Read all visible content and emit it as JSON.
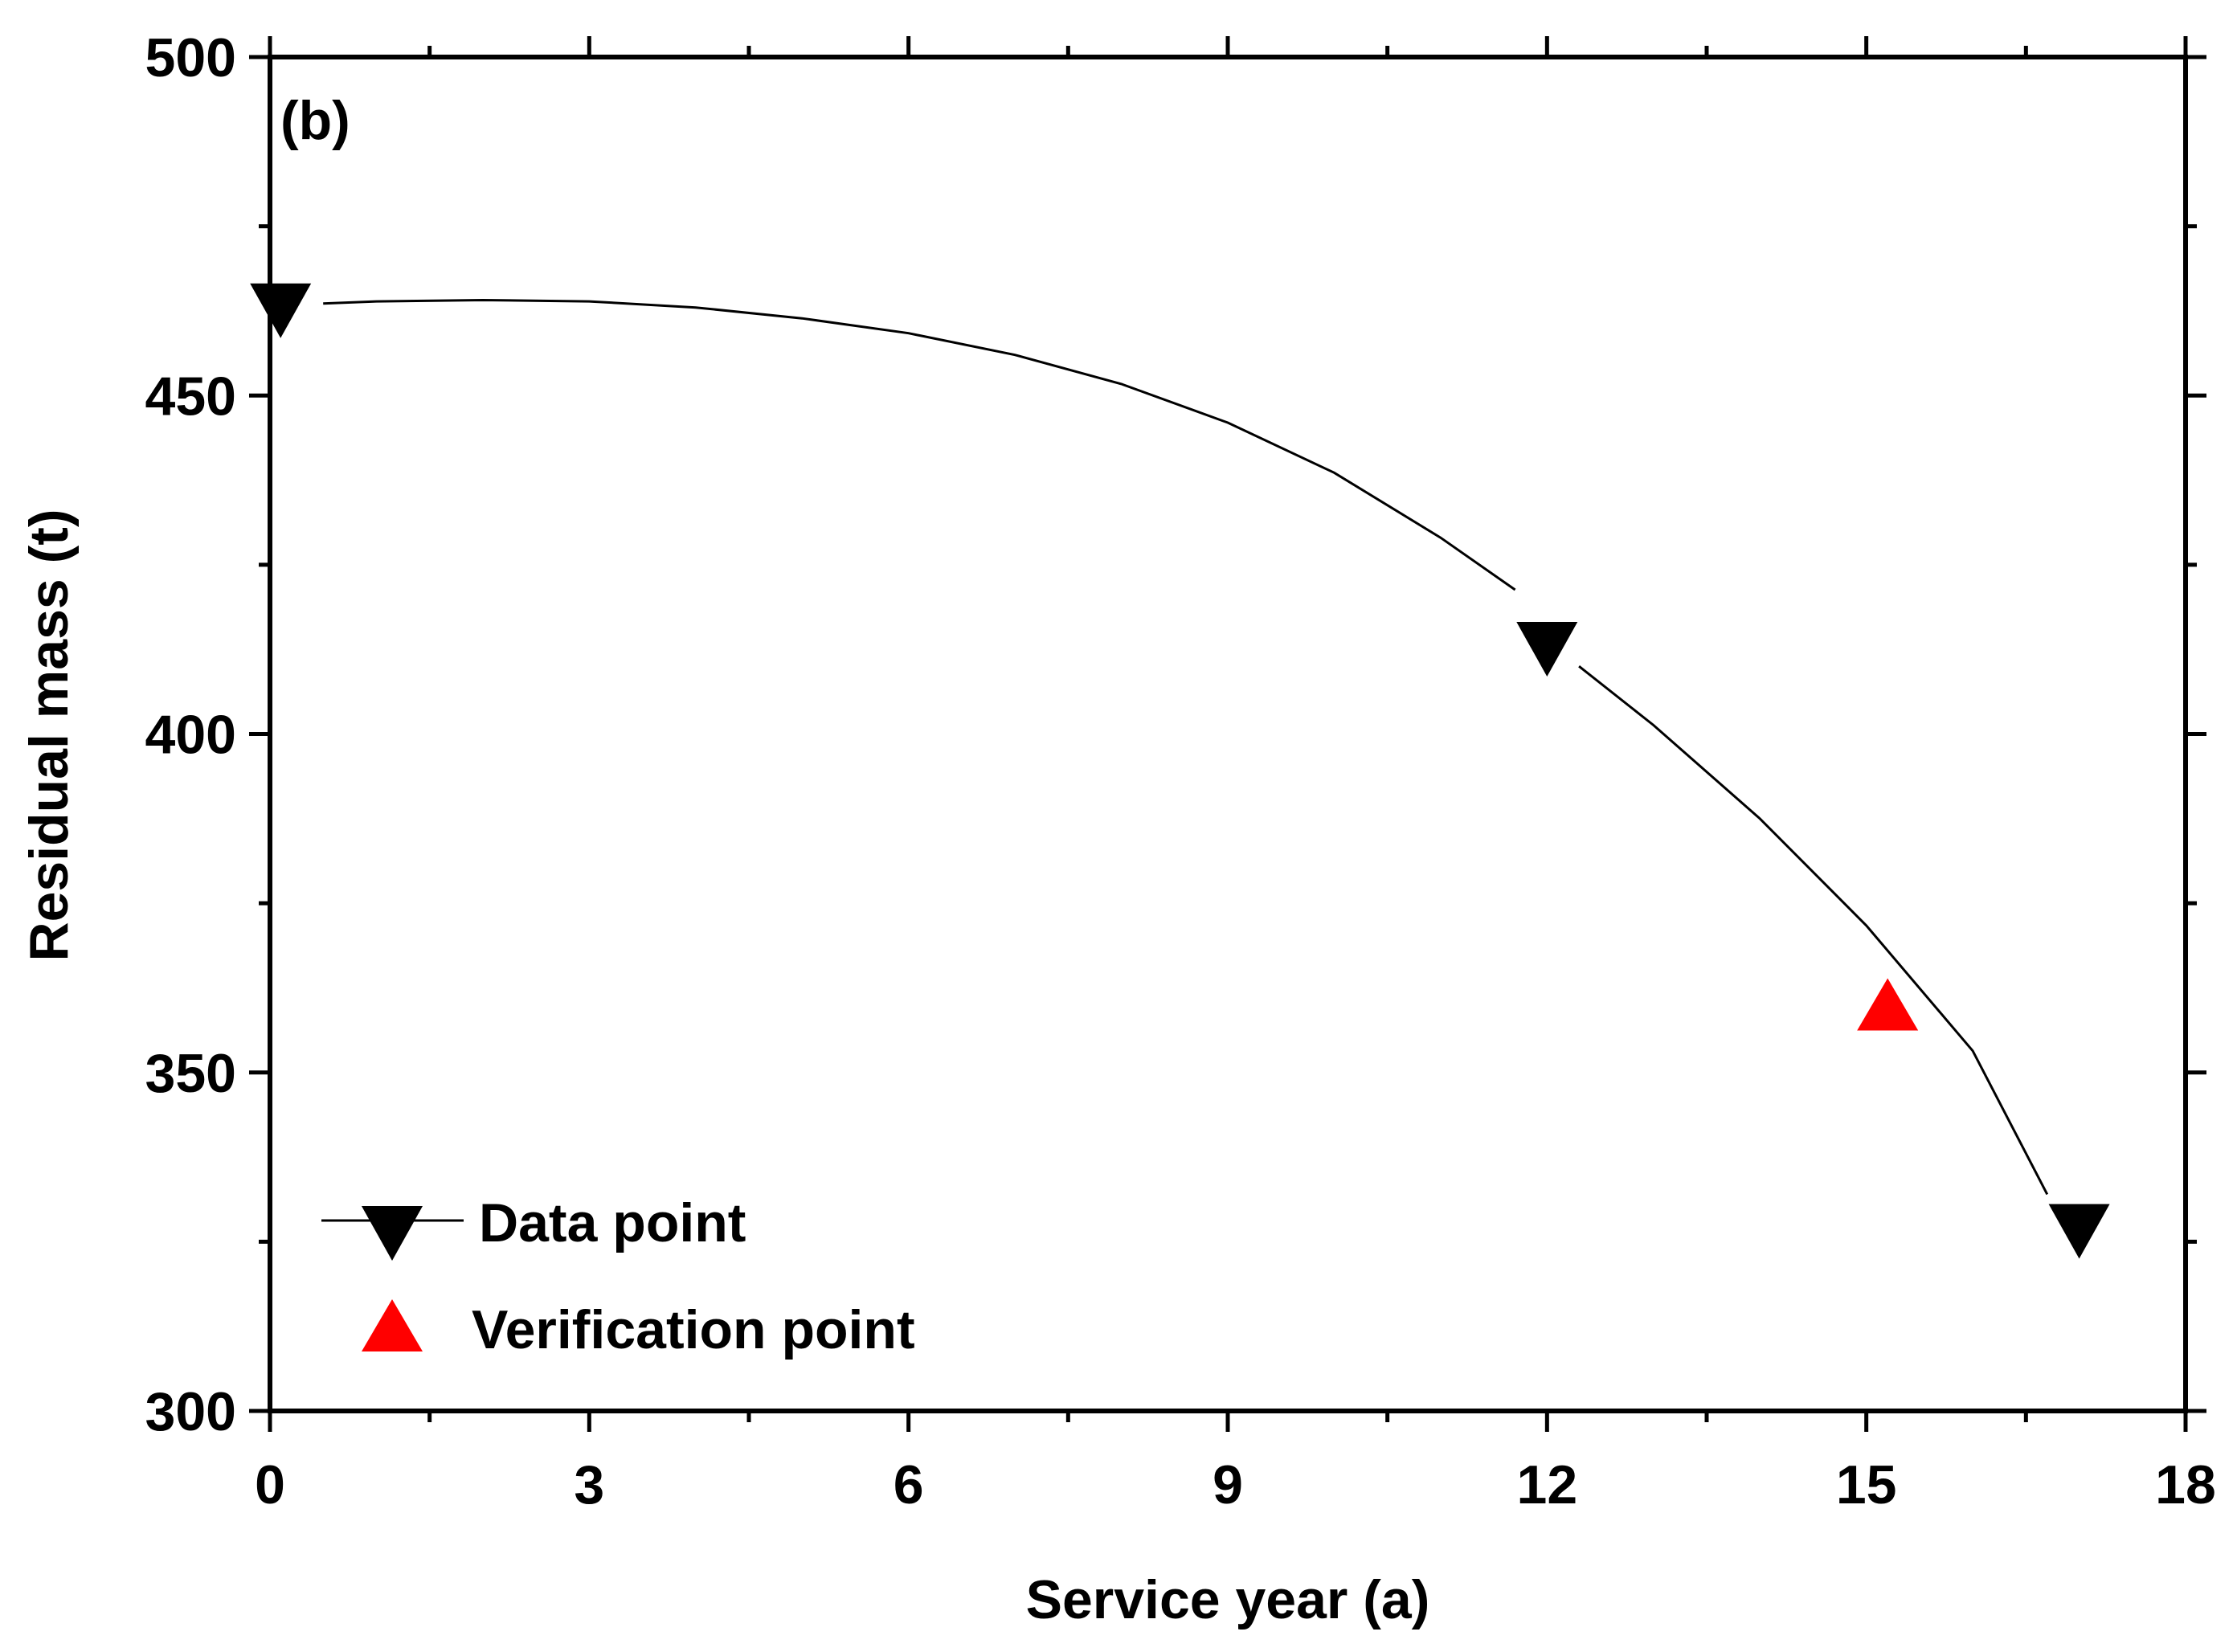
{
  "chart_data": {
    "type": "line",
    "panel_label": "(b)",
    "xlabel": "Service year (a)",
    "ylabel": "Residual mass (t)",
    "xlim": [
      0,
      18
    ],
    "ylim": [
      300,
      500
    ],
    "xticks": [
      0,
      3,
      6,
      9,
      12,
      15,
      18
    ],
    "yticks": [
      300,
      350,
      400,
      450,
      500
    ],
    "grid": false,
    "legend_position": "bottom-left",
    "series": [
      {
        "name": "Data point",
        "marker": "triangle-down",
        "color": "#000000",
        "points": [
          {
            "x": 0.1,
            "y": 463
          },
          {
            "x": 12.0,
            "y": 413
          },
          {
            "x": 17.0,
            "y": 327
          }
        ],
        "fit_curve": [
          {
            "x": 0.5,
            "y": 463.6
          },
          {
            "x": 1.0,
            "y": 463.9
          },
          {
            "x": 2.0,
            "y": 464.1
          },
          {
            "x": 3.0,
            "y": 463.9
          },
          {
            "x": 4.0,
            "y": 463.0
          },
          {
            "x": 5.0,
            "y": 461.4
          },
          {
            "x": 6.0,
            "y": 459.2
          },
          {
            "x": 7.0,
            "y": 456.0
          },
          {
            "x": 8.0,
            "y": 451.7
          },
          {
            "x": 9.0,
            "y": 446.0
          },
          {
            "x": 10.0,
            "y": 438.6
          },
          {
            "x": 11.0,
            "y": 429.0
          },
          {
            "x": 11.7,
            "y": 421.3
          },
          {
            "x": 12.3,
            "y": 410.0
          },
          {
            "x": 13.0,
            "y": 401.3
          },
          {
            "x": 14.0,
            "y": 387.5
          },
          {
            "x": 15.0,
            "y": 371.7
          },
          {
            "x": 16.0,
            "y": 353.2
          },
          {
            "x": 16.7,
            "y": 332.0
          }
        ]
      },
      {
        "name": "Verification point",
        "marker": "triangle-up",
        "color": "#ff0000",
        "points": [
          {
            "x": 15.2,
            "y": 360
          }
        ]
      }
    ]
  }
}
